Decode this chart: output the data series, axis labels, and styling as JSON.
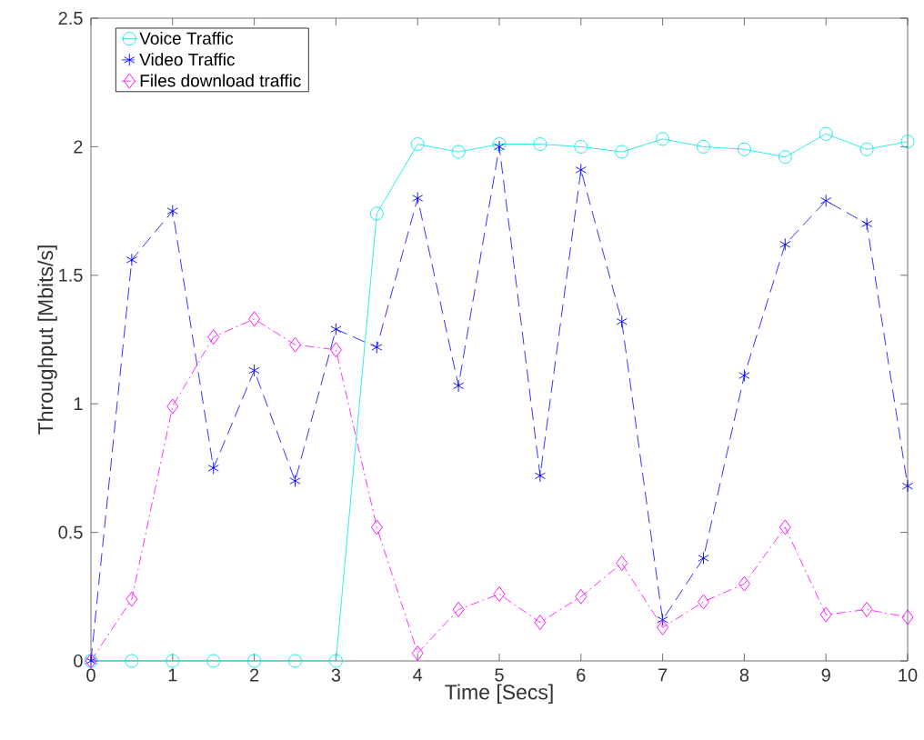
{
  "chart_data": {
    "type": "line",
    "xlabel": "Time [Secs]",
    "ylabel": "Throughput [Mbits/s]",
    "x": [
      0,
      0.5,
      1,
      1.5,
      2,
      2.5,
      3,
      3.5,
      4,
      4.5,
      5,
      5.5,
      6,
      6.5,
      7,
      7.5,
      8,
      8.5,
      9,
      9.5,
      10
    ],
    "series": [
      {
        "name": "Voice Traffic",
        "color": "#00e6e6",
        "marker": "circle",
        "line_style": "solid",
        "values": [
          0,
          0,
          0,
          0,
          0,
          0,
          0,
          1.74,
          2.01,
          1.98,
          2.01,
          2.01,
          2.0,
          1.98,
          2.03,
          2.0,
          1.99,
          1.96,
          2.05,
          1.99,
          2.02
        ]
      },
      {
        "name": "Video Traffic",
        "color": "#0000ff",
        "marker": "cross",
        "line_style": "dashed",
        "values": [
          0,
          1.56,
          1.75,
          0.75,
          1.13,
          0.7,
          1.29,
          1.22,
          1.8,
          1.07,
          2.0,
          0.72,
          1.91,
          1.32,
          0.16,
          0.4,
          1.11,
          1.62,
          1.79,
          1.7,
          0.68
        ]
      },
      {
        "name": "Files download traffic",
        "color": "#ff00ff",
        "marker": "diamond",
        "line_style": "dashdot",
        "values": [
          0,
          0.24,
          0.99,
          1.26,
          1.33,
          1.23,
          1.21,
          0.52,
          0.03,
          0.2,
          0.26,
          0.15,
          0.25,
          0.38,
          0.13,
          0.23,
          0.3,
          0.52,
          0.18,
          0.2,
          0.17
        ]
      }
    ],
    "xlim": [
      0,
      10
    ],
    "ylim": [
      0,
      2.5
    ],
    "xticks": [
      0,
      1,
      2,
      3,
      4,
      5,
      6,
      7,
      8,
      9,
      10
    ],
    "yticks": [
      0,
      0.5,
      1,
      1.5,
      2,
      2.5
    ],
    "grid": false,
    "legend": "top left"
  }
}
